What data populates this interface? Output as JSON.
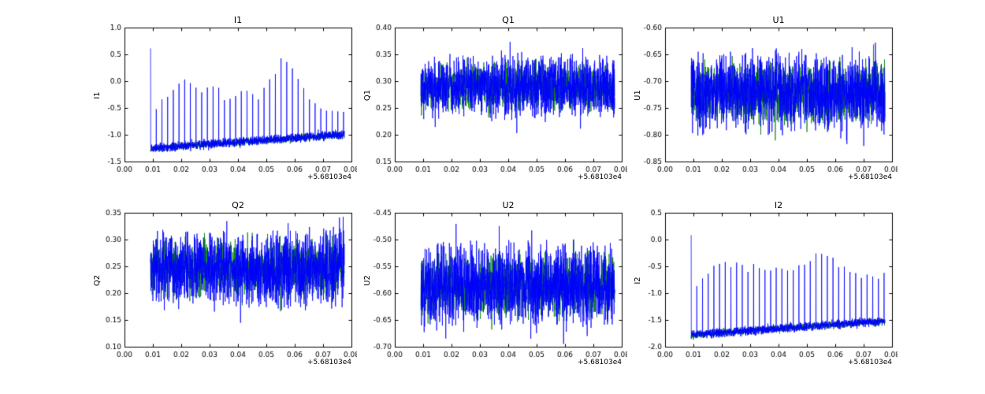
{
  "chart_data": {
    "type": "line",
    "figure": {
      "background": "#ffffff",
      "offset_label": "+5.68103e4",
      "x": {
        "lim": [
          0,
          0.08
        ],
        "ticks": [
          0,
          0.01,
          0.02,
          0.03,
          0.04,
          0.05,
          0.06,
          0.07,
          0.08
        ],
        "tick_decimals": 2,
        "data_start": 0.0092,
        "data_end": 0.0775
      },
      "colors": {
        "line": "#0000ff",
        "under": "#008000",
        "axis": "#000000"
      },
      "legend": "none",
      "grid": false
    },
    "plots": [
      {
        "title": "I1",
        "ylabel": "I1",
        "ylim": [
          -1.5,
          1.0
        ],
        "yticks": [
          -1.5,
          -1.0,
          -0.5,
          0.0,
          0.5,
          1.0
        ],
        "ydecimals": 1,
        "kind": "spiky",
        "seed": 11,
        "band": {
          "c0": -1.25,
          "c1": -1.0,
          "amp": 0.1
        },
        "spike_spacing": 0.002,
        "spike_noise": 0.06,
        "envelope": [
          [
            0.0095,
            0.65
          ],
          [
            0.011,
            -0.5
          ],
          [
            0.014,
            -0.35
          ],
          [
            0.017,
            -0.2
          ],
          [
            0.02,
            0.0
          ],
          [
            0.023,
            -0.05
          ],
          [
            0.026,
            -0.2
          ],
          [
            0.029,
            -0.1
          ],
          [
            0.032,
            -0.05
          ],
          [
            0.035,
            -0.3
          ],
          [
            0.038,
            -0.35
          ],
          [
            0.041,
            -0.25
          ],
          [
            0.044,
            -0.15
          ],
          [
            0.047,
            -0.35
          ],
          [
            0.05,
            -0.1
          ],
          [
            0.053,
            0.15
          ],
          [
            0.056,
            0.45
          ],
          [
            0.058,
            0.3
          ],
          [
            0.061,
            0.0
          ],
          [
            0.064,
            -0.25
          ],
          [
            0.067,
            -0.45
          ],
          [
            0.07,
            -0.55
          ],
          [
            0.073,
            -0.5
          ],
          [
            0.0775,
            -0.55
          ]
        ]
      },
      {
        "title": "Q1",
        "ylabel": "Q1",
        "ylim": [
          0.15,
          0.4
        ],
        "yticks": [
          0.15,
          0.2,
          0.25,
          0.3,
          0.35,
          0.4
        ],
        "ydecimals": 2,
        "kind": "band",
        "seed": 21,
        "band": {
          "c0": 0.29,
          "c1": 0.29,
          "amp": 0.065
        }
      },
      {
        "title": "U1",
        "ylabel": "U1",
        "ylim": [
          -0.85,
          -0.6
        ],
        "yticks": [
          -0.85,
          -0.8,
          -0.75,
          -0.7,
          -0.65,
          -0.6
        ],
        "ydecimals": 2,
        "kind": "band",
        "seed": 31,
        "band": {
          "c0": -0.72,
          "c1": -0.72,
          "amp": 0.085
        }
      },
      {
        "title": "Q2",
        "ylabel": "Q2",
        "ylim": [
          0.1,
          0.35
        ],
        "yticks": [
          0.1,
          0.15,
          0.2,
          0.25,
          0.3,
          0.35
        ],
        "ydecimals": 2,
        "kind": "band",
        "seed": 41,
        "band": {
          "c0": 0.245,
          "c1": 0.245,
          "amp": 0.082
        }
      },
      {
        "title": "U2",
        "ylabel": "U2",
        "ylim": [
          -0.7,
          -0.45
        ],
        "yticks": [
          -0.7,
          -0.65,
          -0.6,
          -0.55,
          -0.5,
          -0.45
        ],
        "ydecimals": 2,
        "kind": "band",
        "seed": 51,
        "band": {
          "c0": -0.585,
          "c1": -0.585,
          "amp": 0.09
        }
      },
      {
        "title": "I2",
        "ylabel": "I2",
        "ylim": [
          -2.0,
          0.5
        ],
        "yticks": [
          -2.0,
          -1.5,
          -1.0,
          -0.5,
          0.0,
          0.5
        ],
        "ydecimals": 1,
        "kind": "spiky",
        "seed": 61,
        "band": {
          "c0": -1.78,
          "c1": -1.52,
          "amp": 0.1
        },
        "spike_spacing": 0.002,
        "spike_noise": 0.06,
        "envelope": [
          [
            0.0095,
            0.1
          ],
          [
            0.011,
            -0.85
          ],
          [
            0.014,
            -0.7
          ],
          [
            0.017,
            -0.55
          ],
          [
            0.02,
            -0.45
          ],
          [
            0.023,
            -0.5
          ],
          [
            0.026,
            -0.4
          ],
          [
            0.029,
            -0.55
          ],
          [
            0.032,
            -0.45
          ],
          [
            0.035,
            -0.6
          ],
          [
            0.038,
            -0.5
          ],
          [
            0.041,
            -0.55
          ],
          [
            0.044,
            -0.6
          ],
          [
            0.047,
            -0.5
          ],
          [
            0.05,
            -0.4
          ],
          [
            0.053,
            -0.3
          ],
          [
            0.056,
            -0.25
          ],
          [
            0.059,
            -0.35
          ],
          [
            0.062,
            -0.5
          ],
          [
            0.065,
            -0.6
          ],
          [
            0.068,
            -0.7
          ],
          [
            0.071,
            -0.65
          ],
          [
            0.074,
            -0.7
          ],
          [
            0.0775,
            -0.65
          ]
        ]
      }
    ]
  }
}
